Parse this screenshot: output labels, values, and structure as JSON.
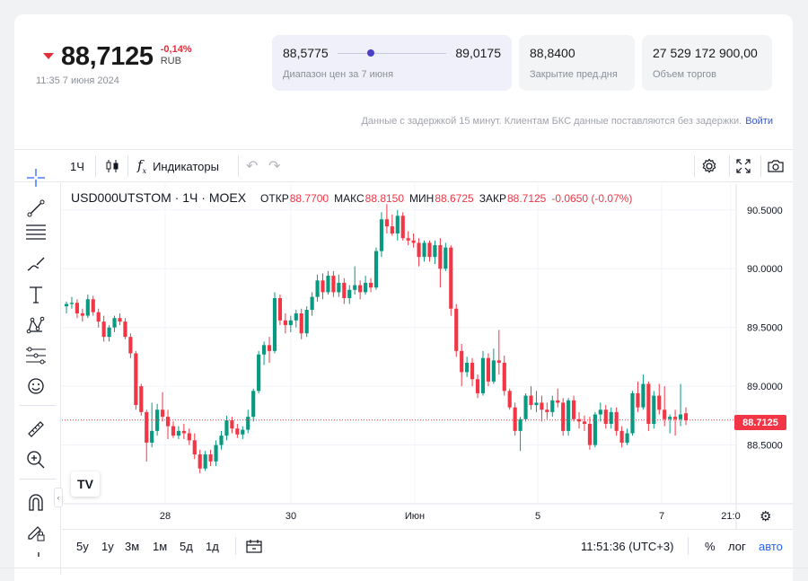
{
  "quote": {
    "price": "88,7125",
    "change_pct": "-0,14%",
    "currency": "RUB",
    "timestamp": "11:35 7 июня 2024"
  },
  "range": {
    "low": "88,5775",
    "high": "89,0175",
    "label": "Диапазон цен за 7 июня",
    "position": 0.31
  },
  "prev_close": {
    "value": "88,8400",
    "label": "Закрытие пред.дня"
  },
  "volume": {
    "value": "27 529 172 900,00",
    "label": "Объем торгов"
  },
  "delay_notice": {
    "text": "Данные с задержкой 15 минут. Клиентам БКС данные поставляются без задержки.",
    "login": "Войти"
  },
  "toolbar": {
    "interval": "1Ч",
    "indicators": "Индикаторы"
  },
  "legend": {
    "symbol": "USD000UTSTOM",
    "interval": "1Ч",
    "exchange": "MOEX",
    "open_label": "ОТКР",
    "open": "88.7700",
    "high_label": "МАКС",
    "high": "88.8150",
    "low_label": "МИН",
    "low": "88.6725",
    "close_label": "ЗАКР",
    "close": "88.7125",
    "change": "-0.0650 (-0.07%)"
  },
  "last_price_label": "88.7125",
  "logo_text": "TV",
  "bottom": {
    "ranges": [
      "5у",
      "1у",
      "3м",
      "1м",
      "5д",
      "1д"
    ],
    "time": "11:51:36 (UTC+3)",
    "percent": "%",
    "log": "лог",
    "auto": "авто"
  },
  "chart_data": {
    "type": "candlestick",
    "y_ticks": [
      "90.5000",
      "90.0000",
      "89.5000",
      "89.0000",
      "88.5000"
    ],
    "x_ticks": [
      "28",
      "30",
      "Июн",
      "5",
      "7",
      "21:0"
    ],
    "ylim": [
      88.0,
      90.72
    ],
    "last": 88.7125,
    "colors": {
      "up": "#089981",
      "down": "#f23645"
    },
    "candles": [
      [
        89.68,
        89.72,
        89.62,
        89.7
      ],
      [
        89.7,
        89.76,
        89.66,
        89.71
      ],
      [
        89.71,
        89.74,
        89.58,
        89.62
      ],
      [
        89.62,
        89.66,
        89.55,
        89.6
      ],
      [
        89.6,
        89.78,
        89.58,
        89.74
      ],
      [
        89.74,
        89.77,
        89.6,
        89.63
      ],
      [
        89.63,
        89.66,
        89.5,
        89.55
      ],
      [
        89.55,
        89.6,
        89.38,
        89.42
      ],
      [
        89.42,
        89.52,
        89.38,
        89.5
      ],
      [
        89.5,
        89.6,
        89.46,
        89.58
      ],
      [
        89.58,
        89.62,
        89.52,
        89.55
      ],
      [
        89.55,
        89.58,
        89.4,
        89.42
      ],
      [
        89.42,
        89.45,
        89.24,
        89.28
      ],
      [
        89.28,
        89.3,
        88.8,
        88.84
      ],
      [
        89.0,
        89.02,
        88.75,
        88.78
      ],
      [
        88.78,
        88.8,
        88.36,
        88.52
      ],
      [
        88.52,
        88.86,
        88.48,
        88.62
      ],
      [
        88.62,
        88.85,
        88.58,
        88.8
      ],
      [
        88.8,
        88.95,
        88.7,
        88.74
      ],
      [
        88.74,
        88.8,
        88.55,
        88.66
      ],
      [
        88.66,
        88.7,
        88.56,
        88.58
      ],
      [
        88.58,
        88.66,
        88.55,
        88.62
      ],
      [
        88.62,
        88.68,
        88.55,
        88.6
      ],
      [
        88.6,
        88.64,
        88.5,
        88.54
      ],
      [
        88.54,
        88.6,
        88.38,
        88.42
      ],
      [
        88.42,
        88.46,
        88.26,
        88.3
      ],
      [
        88.3,
        88.45,
        88.28,
        88.42
      ],
      [
        88.42,
        88.46,
        88.32,
        88.36
      ],
      [
        88.36,
        88.54,
        88.32,
        88.5
      ],
      [
        88.5,
        88.62,
        88.46,
        88.58
      ],
      [
        88.58,
        88.75,
        88.54,
        88.71
      ],
      [
        88.71,
        88.74,
        88.6,
        88.64
      ],
      [
        88.64,
        88.68,
        88.56,
        88.59
      ],
      [
        88.59,
        88.66,
        88.55,
        88.63
      ],
      [
        88.63,
        88.8,
        88.6,
        88.74
      ],
      [
        88.74,
        88.98,
        88.7,
        88.96
      ],
      [
        88.96,
        89.3,
        88.94,
        89.27
      ],
      [
        89.27,
        89.38,
        89.18,
        89.35
      ],
      [
        89.35,
        89.42,
        89.2,
        89.3
      ],
      [
        89.3,
        89.8,
        89.28,
        89.75
      ],
      [
        89.75,
        89.78,
        89.52,
        89.56
      ],
      [
        89.56,
        89.62,
        89.45,
        89.52
      ],
      [
        89.52,
        89.6,
        89.46,
        89.56
      ],
      [
        89.56,
        89.65,
        89.5,
        89.62
      ],
      [
        89.62,
        89.66,
        89.4,
        89.45
      ],
      [
        89.45,
        89.68,
        89.42,
        89.65
      ],
      [
        89.65,
        89.8,
        89.6,
        89.76
      ],
      [
        89.76,
        89.95,
        89.72,
        89.9
      ],
      [
        89.9,
        89.96,
        89.74,
        89.8
      ],
      [
        89.8,
        89.98,
        89.78,
        89.94
      ],
      [
        89.94,
        89.98,
        89.76,
        89.8
      ],
      [
        89.8,
        89.95,
        89.76,
        89.88
      ],
      [
        89.88,
        89.92,
        89.7,
        89.75
      ],
      [
        89.75,
        89.86,
        89.7,
        89.82
      ],
      [
        89.82,
        90.02,
        89.78,
        89.86
      ],
      [
        89.86,
        89.9,
        89.74,
        89.8
      ],
      [
        89.8,
        89.94,
        89.78,
        89.88
      ],
      [
        89.88,
        89.92,
        89.8,
        89.84
      ],
      [
        89.84,
        90.18,
        89.82,
        90.15
      ],
      [
        90.15,
        90.48,
        90.1,
        90.42
      ],
      [
        90.42,
        90.55,
        90.3,
        90.36
      ],
      [
        90.36,
        90.46,
        90.28,
        90.3
      ],
      [
        90.3,
        90.5,
        90.24,
        90.45
      ],
      [
        90.45,
        90.48,
        90.24,
        90.26
      ],
      [
        90.26,
        90.32,
        90.2,
        90.24
      ],
      [
        90.24,
        90.3,
        90.18,
        90.22
      ],
      [
        90.22,
        90.26,
        90.02,
        90.1
      ],
      [
        90.1,
        90.24,
        90.06,
        90.22
      ],
      [
        90.22,
        90.24,
        90.06,
        90.1
      ],
      [
        90.1,
        90.24,
        90.04,
        90.2
      ],
      [
        90.2,
        90.26,
        89.84,
        90.0
      ],
      [
        90.0,
        90.22,
        89.98,
        90.18
      ],
      [
        90.18,
        90.2,
        89.6,
        89.66
      ],
      [
        89.66,
        89.7,
        89.25,
        89.3
      ],
      [
        89.3,
        89.36,
        89.0,
        89.12
      ],
      [
        89.12,
        89.25,
        89.08,
        89.2
      ],
      [
        89.2,
        89.24,
        89.0,
        89.06
      ],
      [
        89.06,
        89.1,
        88.9,
        88.94
      ],
      [
        88.94,
        89.3,
        88.92,
        89.24
      ],
      [
        89.24,
        89.28,
        89.0,
        89.04
      ],
      [
        89.04,
        89.32,
        89.02,
        89.22
      ],
      [
        89.22,
        89.48,
        89.1,
        89.2
      ],
      [
        89.2,
        89.26,
        88.92,
        88.96
      ],
      [
        88.96,
        88.98,
        88.8,
        88.82
      ],
      [
        88.82,
        88.86,
        88.58,
        88.62
      ],
      [
        88.62,
        88.74,
        88.45,
        88.72
      ],
      [
        88.72,
        88.94,
        88.7,
        88.92
      ],
      [
        88.92,
        89.0,
        88.8,
        88.84
      ],
      [
        88.84,
        88.96,
        88.78,
        88.86
      ],
      [
        88.86,
        88.92,
        88.7,
        88.8
      ],
      [
        88.8,
        88.86,
        88.72,
        88.78
      ],
      [
        88.78,
        88.92,
        88.74,
        88.88
      ],
      [
        88.88,
        88.98,
        88.82,
        88.86
      ],
      [
        88.86,
        88.9,
        88.58,
        88.62
      ],
      [
        88.62,
        88.9,
        88.58,
        88.88
      ],
      [
        88.88,
        88.92,
        88.7,
        88.72
      ],
      [
        88.72,
        88.78,
        88.64,
        88.7
      ],
      [
        88.7,
        88.75,
        88.62,
        88.68
      ],
      [
        88.68,
        88.74,
        88.46,
        88.5
      ],
      [
        88.5,
        88.78,
        88.48,
        88.76
      ],
      [
        88.76,
        88.86,
        88.7,
        88.8
      ],
      [
        88.8,
        88.84,
        88.64,
        88.68
      ],
      [
        88.68,
        88.82,
        88.64,
        88.78
      ],
      [
        88.78,
        88.82,
        88.58,
        88.62
      ],
      [
        88.62,
        88.66,
        88.48,
        88.52
      ],
      [
        88.52,
        88.64,
        88.5,
        88.6
      ],
      [
        88.6,
        88.96,
        88.58,
        88.94
      ],
      [
        88.94,
        89.04,
        88.78,
        88.82
      ],
      [
        88.82,
        89.1,
        88.8,
        89.02
      ],
      [
        89.02,
        89.04,
        88.62,
        88.68
      ],
      [
        88.68,
        88.96,
        88.64,
        88.92
      ],
      [
        88.92,
        89.02,
        88.76,
        88.8
      ],
      [
        88.8,
        89.0,
        88.66,
        88.72
      ],
      [
        88.72,
        88.76,
        88.6,
        88.74
      ],
      [
        88.74,
        88.8,
        88.58,
        88.72
      ],
      [
        88.72,
        89.02,
        88.66,
        88.76
      ],
      [
        88.77,
        88.82,
        88.67,
        88.71
      ]
    ]
  }
}
